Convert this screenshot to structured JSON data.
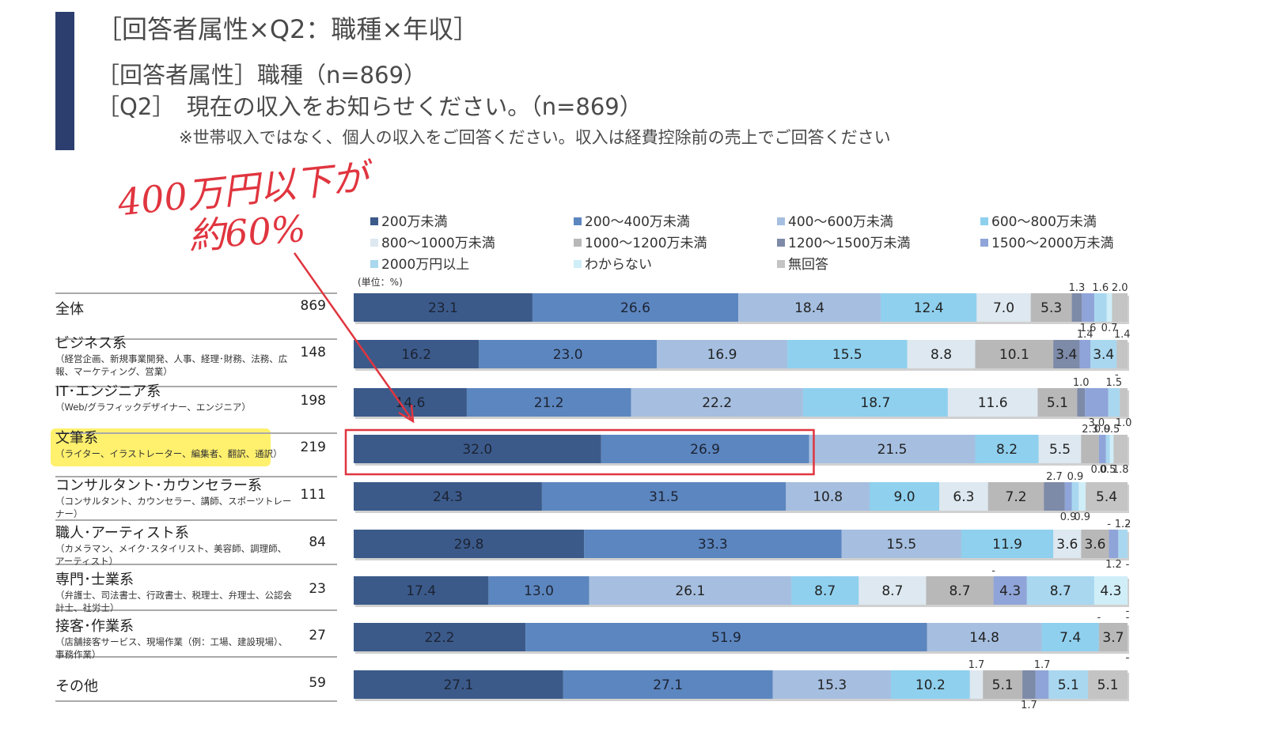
{
  "header": {
    "title": "［回答者属性×Q2：職種×年収］",
    "subtitle1": "［回答者属性］職種（n=869）",
    "subtitle2": "［Q2］　現在の収入をお知らせください。（n=869）",
    "note": "※世帯収入ではなく、個人の収入をご回答ください。収入は経費控除前の売上でご回答ください"
  },
  "annotation": {
    "line1": "400万円以下が",
    "line2": "約60%"
  },
  "colors": {
    "accent": "#2b3e6e",
    "highlight_box": "#e0353f",
    "segments": [
      "#3b5a8a",
      "#5c86bf",
      "#a6bfe0",
      "#8fd0ee",
      "#dde8f0",
      "#b8b8b8",
      "#7d8aa8",
      "#8fa4d8",
      "#a9d7f0",
      "#d0eef8",
      "#c4c4c4"
    ]
  },
  "chart_data": {
    "type": "bar",
    "orientation": "horizontal",
    "stacked": true,
    "unit_label": "(単位：%)",
    "legend": [
      "200万未満",
      "200～400万未満",
      "400～600万未満",
      "600～800万未満",
      "800～1000万未満",
      "1000～1200万未満",
      "1200～1500万未満",
      "1500～2000万未満",
      "2000万円以上",
      "わからない",
      "無回答"
    ],
    "rows": [
      {
        "label": "全体",
        "detail": "",
        "n": "869",
        "values": [
          23.1,
          26.6,
          18.4,
          12.4,
          7.0,
          5.3,
          1.3,
          1.6,
          1.6,
          0.7,
          2.0
        ],
        "labels": [
          "23.1",
          "26.6",
          "18.4",
          "12.4",
          "7.0",
          "5.3",
          "1.3",
          "1.6",
          "1.6",
          "0.7",
          "2.0"
        ]
      },
      {
        "label": "ビジネス系",
        "detail": "（経営企画、新規事業開発、人事、経理･財務、法務、広報、マーケティング、営業）",
        "n": "148",
        "values": [
          16.2,
          23.0,
          16.9,
          15.5,
          8.8,
          10.1,
          3.4,
          1.4,
          3.4,
          0,
          1.4
        ],
        "labels": [
          "16.2",
          "23.0",
          "16.9",
          "15.5",
          "8.8",
          "10.1",
          "3.4",
          "1.4",
          "3.4",
          "-",
          "1.4"
        ]
      },
      {
        "label": "IT･エンジニア系",
        "detail": "（Web/グラフィックデザイナー、エンジニア）",
        "n": "198",
        "values": [
          14.6,
          21.2,
          22.2,
          18.7,
          11.6,
          5.1,
          1.0,
          3.0,
          1.5,
          0,
          1.0
        ],
        "labels": [
          "14.6",
          "21.2",
          "22.2",
          "18.7",
          "11.6",
          "5.1",
          "1.0",
          "3.0",
          "1.5",
          "",
          "1.0"
        ]
      },
      {
        "label": "文筆系",
        "detail": "（ライター、イラストレーター、編集者、翻訳、通訳）",
        "n": "219",
        "values": [
          32.0,
          26.9,
          21.5,
          8.2,
          5.5,
          2.3,
          0.0,
          0.9,
          0.5,
          0.5,
          1.8
        ],
        "labels": [
          "32.0",
          "26.9",
          "21.5",
          "8.2",
          "5.5",
          "2.3",
          "0.0",
          "0.9",
          "0.5",
          "0.5",
          "1.8"
        ]
      },
      {
        "label": "コンサルタント･カウンセラー系",
        "detail": "（コンサルタント、カウンセラー、講師、スポーツトレーナー）",
        "n": "111",
        "values": [
          24.3,
          31.5,
          10.8,
          9.0,
          6.3,
          7.2,
          2.7,
          0.9,
          0.9,
          0.9,
          5.4
        ],
        "labels": [
          "24.3",
          "31.5",
          "10.8",
          "9.0",
          "6.3",
          "7.2",
          "2.7",
          "0.9",
          "0.9",
          "0.9",
          "5.4"
        ]
      },
      {
        "label": "職人･アーティスト系",
        "detail": "（カメラマン、メイク･スタイリスト、美容師、調理師、アーティスト）",
        "n": "84",
        "values": [
          29.8,
          33.3,
          15.5,
          11.9,
          3.6,
          3.6,
          0,
          1.2,
          1.2,
          0,
          0
        ],
        "labels": [
          "29.8",
          "33.3",
          "15.5",
          "11.9",
          "3.6",
          "3.6",
          "-",
          "1.2",
          "1.2",
          "-",
          "-"
        ]
      },
      {
        "label": "専門･士業系",
        "detail": "（弁護士、司法書士、行政書士、税理士、弁理士、公認会計士、社労士）",
        "n": "23",
        "values": [
          17.4,
          13.0,
          26.1,
          8.7,
          8.7,
          8.7,
          0,
          4.3,
          8.7,
          4.3,
          0
        ],
        "labels": [
          "17.4",
          "13.0",
          "26.1",
          "8.7",
          "8.7",
          "8.7",
          "-",
          "4.3",
          "8.7",
          "4.3",
          "-"
        ]
      },
      {
        "label": "接客･作業系",
        "detail": "（店舗接客サービス、現場作業（例：工場、建設現場）、事務作業）",
        "n": "27",
        "values": [
          22.2,
          51.9,
          14.8,
          7.4,
          0,
          3.7,
          0,
          0,
          0,
          0,
          0
        ],
        "labels": [
          "22.2",
          "51.9",
          "14.8",
          "7.4",
          "-",
          "3.7",
          "-",
          "-",
          "",
          "",
          "-"
        ]
      },
      {
        "label": "その他",
        "detail": "",
        "n": "59",
        "values": [
          27.1,
          27.1,
          15.3,
          10.2,
          1.7,
          5.1,
          1.7,
          1.7,
          5.1,
          0,
          5.1
        ],
        "labels": [
          "27.1",
          "27.1",
          "15.3",
          "10.2",
          "1.7",
          "5.1",
          "1.7",
          "1.7",
          "5.1",
          "",
          "5.1"
        ]
      }
    ]
  }
}
